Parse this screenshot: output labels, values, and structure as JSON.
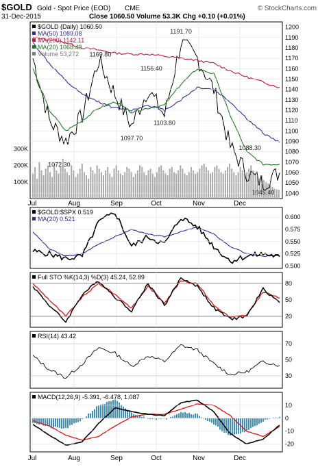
{
  "header": {
    "symbol": "$GOLD",
    "name": "Gold - Spot Price (EOD)",
    "exchange": "CME",
    "date": "31-Dec-2015",
    "stats": "Close 1060.50  Volume 53.3K  Chg +0.10 (+0.01%)",
    "brand": "© StockCharts.com"
  },
  "colors": {
    "price": "#000000",
    "ma50": "#2b2b9c",
    "ma200": "#c0143c",
    "ma20": "#1f7a1f",
    "volume": "#a8a8a8",
    "sto_k": "#000000",
    "sto_d": "#e01010",
    "macd_hist": "#3a8fc4"
  },
  "x_labels": [
    "Jul",
    "Aug",
    "Sep",
    "Oct",
    "Nov",
    "Dec"
  ],
  "chart_data": [
    {
      "type": "line",
      "title": "$GOLD (Daily) 1060.50",
      "x": [
        "Jul-01",
        "Jul-15",
        "Aug-01",
        "Aug-15",
        "Aug-26",
        "Sep-01",
        "Sep-10",
        "Sep-18",
        "Oct-01",
        "Oct-14",
        "Oct-20",
        "Nov-01",
        "Nov-15",
        "Dec-01",
        "Dec-17",
        "Dec-31"
      ],
      "series": [
        {
          "name": "$GOLD (Daily) 1060.50",
          "values": [
            1170,
            1110,
            1090,
            1115,
            1168,
            1135,
            1105,
            1140,
            1115,
            1185,
            1170,
            1140,
            1085,
            1060,
            1050,
            1060
          ]
        },
        {
          "name": "MA(50) 1089.08",
          "values": [
            1185,
            1165,
            1148,
            1135,
            1128,
            1122,
            1120,
            1125,
            1120,
            1130,
            1142,
            1140,
            1128,
            1112,
            1098,
            1089
          ]
        },
        {
          "name": "MA(200) 1142.11",
          "values": [
            1190,
            1188,
            1185,
            1180,
            1178,
            1175,
            1174,
            1174,
            1172,
            1170,
            1168,
            1165,
            1158,
            1152,
            1147,
            1142
          ]
        },
        {
          "name": "MA(20) 1068.43",
          "values": [
            1160,
            1120,
            1100,
            1110,
            1122,
            1128,
            1118,
            1122,
            1125,
            1145,
            1160,
            1155,
            1115,
            1080,
            1068,
            1068
          ]
        }
      ],
      "annotations": [
        {
          "label": "1072.30",
          "x": "Jul-24",
          "y": 1072.3
        },
        {
          "label": "1169.80",
          "x": "Aug-24",
          "y": 1169.8
        },
        {
          "label": "1097.70",
          "x": "Sep-10",
          "y": 1097.7
        },
        {
          "label": "1156.40",
          "x": "Sep-23",
          "y": 1156.4
        },
        {
          "label": "1103.80",
          "x": "Oct-01",
          "y": 1103.8
        },
        {
          "label": "1191.70",
          "x": "Oct-14",
          "y": 1191.7
        },
        {
          "label": "1088.30",
          "x": "Dec-04",
          "y": 1088.3
        },
        {
          "label": "1045.40",
          "x": "Dec-17",
          "y": 1045.4
        }
      ],
      "yticks": [
        1040,
        1050,
        1060,
        1070,
        1080,
        1090,
        1100,
        1110,
        1120,
        1130,
        1140,
        1150,
        1160,
        1170,
        1180,
        1190,
        1200
      ],
      "ylim": [
        1035,
        1205
      ],
      "volume": {
        "label": "Volume 53,272",
        "ticks": [
          "100K",
          "200K",
          "300K"
        ],
        "values": [
          150,
          190,
          120,
          220,
          170,
          140,
          180,
          200,
          160,
          130,
          210,
          170,
          150,
          190,
          240,
          180,
          160,
          140,
          200,
          170,
          130,
          150,
          180,
          210,
          160,
          140,
          120,
          190,
          170,
          150,
          200,
          180,
          160,
          140,
          170,
          190,
          150,
          130,
          180,
          200,
          170,
          150,
          140,
          160,
          190,
          180,
          160,
          130,
          150,
          170,
          200,
          190,
          160,
          140,
          170,
          180,
          150,
          130,
          160,
          190,
          200,
          170,
          150,
          140,
          180,
          190,
          160,
          150,
          170,
          200,
          180,
          150,
          140,
          160,
          190,
          170,
          150,
          160,
          180,
          200,
          210,
          190,
          170,
          150,
          160,
          190,
          200,
          180,
          160,
          150,
          170,
          190,
          210,
          180,
          160,
          140,
          160,
          190,
          170,
          150,
          160,
          180,
          200,
          170,
          150,
          130,
          120,
          140,
          110,
          100,
          90,
          80,
          70,
          60,
          55,
          53
        ]
      }
    },
    {
      "type": "line",
      "title": "$GOLD:$SPX 0.519",
      "series": [
        {
          "name": "$GOLD:$SPX 0.519",
          "values": [
            0.53,
            0.525,
            0.515,
            0.52,
            0.59,
            0.61,
            0.54,
            0.56,
            0.545,
            0.6,
            0.58,
            0.54,
            0.51,
            0.52,
            0.525,
            0.519
          ]
        },
        {
          "name": "MA(20) 0.521",
          "values": [
            0.57,
            0.535,
            0.52,
            0.525,
            0.545,
            0.56,
            0.575,
            0.565,
            0.56,
            0.57,
            0.58,
            0.565,
            0.54,
            0.525,
            0.52,
            0.521
          ]
        }
      ],
      "yticks": [
        "0.500",
        "0.525",
        "0.550",
        "0.575",
        "0.600"
      ],
      "ylim": [
        0.495,
        0.62
      ]
    },
    {
      "type": "line",
      "title": "Full STO %K(14,3) %D(3) 45.24, 52.89",
      "series": [
        {
          "name": "%K(14,3)",
          "values": [
            75,
            40,
            10,
            60,
            85,
            55,
            30,
            80,
            40,
            90,
            75,
            35,
            15,
            20,
            70,
            45
          ]
        },
        {
          "name": "%D(3)",
          "values": [
            80,
            50,
            20,
            55,
            80,
            60,
            35,
            75,
            45,
            85,
            80,
            40,
            18,
            22,
            65,
            53
          ]
        }
      ],
      "yticks": [
        20,
        50,
        80
      ],
      "ylim": [
        0,
        100
      ]
    },
    {
      "type": "line",
      "title": "RSI(14) 43.42",
      "series": [
        {
          "name": "RSI(14)",
          "values": [
            55,
            38,
            28,
            45,
            65,
            58,
            42,
            55,
            48,
            68,
            62,
            45,
            32,
            35,
            48,
            43
          ]
        }
      ],
      "yticks": [
        30,
        50,
        70
      ],
      "ylim": [
        15,
        85
      ]
    },
    {
      "type": "line",
      "title": "MACD(12,26,9) -5.391, -6.478, 1.087",
      "series": [
        {
          "name": "MACD",
          "values": [
            -5,
            -13,
            -21,
            -18,
            -4,
            8,
            5,
            3,
            2,
            12,
            14,
            5,
            -12,
            -20,
            -16,
            -5.391
          ]
        },
        {
          "name": "Signal",
          "values": [
            -2,
            -6,
            -13,
            -17,
            -14,
            -6,
            1,
            3,
            3,
            7,
            11,
            10,
            2,
            -10,
            -14,
            -6.478
          ]
        },
        {
          "name": "Histogram",
          "values": [
            -3,
            -7,
            -8,
            -1,
            10,
            14,
            4,
            0,
            -1,
            5,
            3,
            -5,
            -14,
            -10,
            -2,
            1.087
          ]
        }
      ],
      "yticks": [
        -20,
        -10,
        0,
        10
      ],
      "ylim": [
        -26,
        20
      ]
    }
  ]
}
